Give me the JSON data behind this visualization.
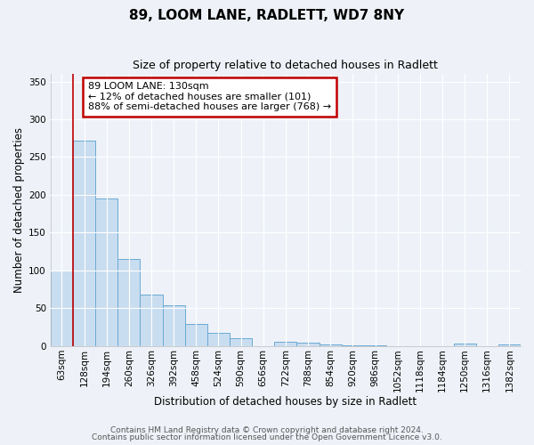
{
  "title": "89, LOOM LANE, RADLETT, WD7 8NY",
  "subtitle": "Size of property relative to detached houses in Radlett",
  "xlabel": "Distribution of detached houses by size in Radlett",
  "ylabel": "Number of detached properties",
  "bin_labels": [
    "63sqm",
    "128sqm",
    "194sqm",
    "260sqm",
    "326sqm",
    "392sqm",
    "458sqm",
    "524sqm",
    "590sqm",
    "656sqm",
    "722sqm",
    "788sqm",
    "854sqm",
    "920sqm",
    "986sqm",
    "1052sqm",
    "1118sqm",
    "1184sqm",
    "1250sqm",
    "1316sqm",
    "1382sqm"
  ],
  "bar_heights": [
    100,
    272,
    195,
    115,
    68,
    54,
    29,
    17,
    10,
    0,
    6,
    5,
    2,
    1,
    1,
    0,
    0,
    0,
    3,
    0,
    2
  ],
  "bar_color": "#c9ddf0",
  "bar_edge_color": "#6aaad4",
  "vline_x": 1.0,
  "vline_color": "#c00000",
  "annotation_text": "89 LOOM LANE: 130sqm\n← 12% of detached houses are smaller (101)\n88% of semi-detached houses are larger (768) →",
  "annotation_box_color": "#ffffff",
  "annotation_box_edge_color": "#c00000",
  "ylim": [
    0,
    360
  ],
  "yticks": [
    0,
    50,
    100,
    150,
    200,
    250,
    300,
    350
  ],
  "footer_line1": "Contains HM Land Registry data © Crown copyright and database right 2024.",
  "footer_line2": "Contains public sector information licensed under the Open Government Licence v3.0.",
  "background_color": "#eef2f8",
  "plot_background_color": "#eef2f8",
  "title_fontsize": 11,
  "subtitle_fontsize": 9,
  "axis_label_fontsize": 8.5,
  "tick_fontsize": 7.5,
  "annotation_fontsize": 8,
  "footer_fontsize": 6.5
}
